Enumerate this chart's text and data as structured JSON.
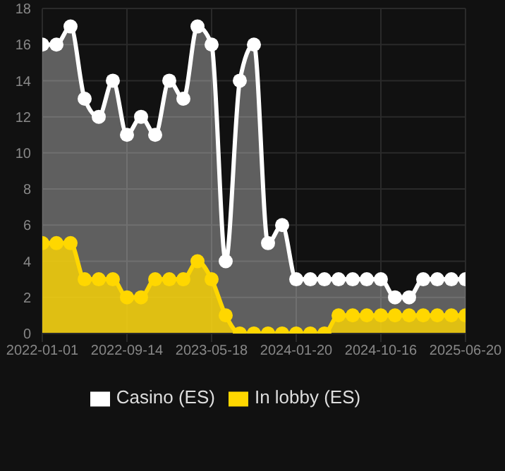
{
  "chart_data": {
    "type": "area",
    "categories": [
      "2022-01-01",
      null,
      null,
      null,
      null,
      null,
      "2022-09-14",
      null,
      null,
      null,
      null,
      null,
      "2023-05-18",
      null,
      null,
      null,
      null,
      null,
      "2024-01-20",
      null,
      null,
      null,
      null,
      null,
      "2024-10-16",
      null,
      null,
      null,
      null,
      null,
      "2025-06-20"
    ],
    "series": [
      {
        "name": "Casino (ES)",
        "color": "#ffffff",
        "values": [
          16,
          16,
          17,
          13,
          12,
          14,
          11,
          12,
          11,
          14,
          13,
          17,
          16,
          4,
          14,
          16,
          5,
          6,
          3,
          3,
          3,
          3,
          3,
          3,
          3,
          2,
          2,
          3,
          3,
          3,
          3
        ]
      },
      {
        "name": "In lobby (ES)",
        "color": "#ffd700",
        "values": [
          5,
          5,
          5,
          3,
          3,
          3,
          2,
          2,
          3,
          3,
          3,
          4,
          3,
          1,
          0,
          0,
          0,
          0,
          0,
          0,
          0,
          1,
          1,
          1,
          1,
          1,
          1,
          1,
          1,
          1,
          1
        ]
      }
    ],
    "ylim": [
      0,
      18
    ],
    "yticks": [
      0,
      2,
      4,
      6,
      8,
      10,
      12,
      14,
      16,
      18
    ],
    "grid": true,
    "legend": "bottom",
    "marker": "circle",
    "line_style": "solid"
  }
}
